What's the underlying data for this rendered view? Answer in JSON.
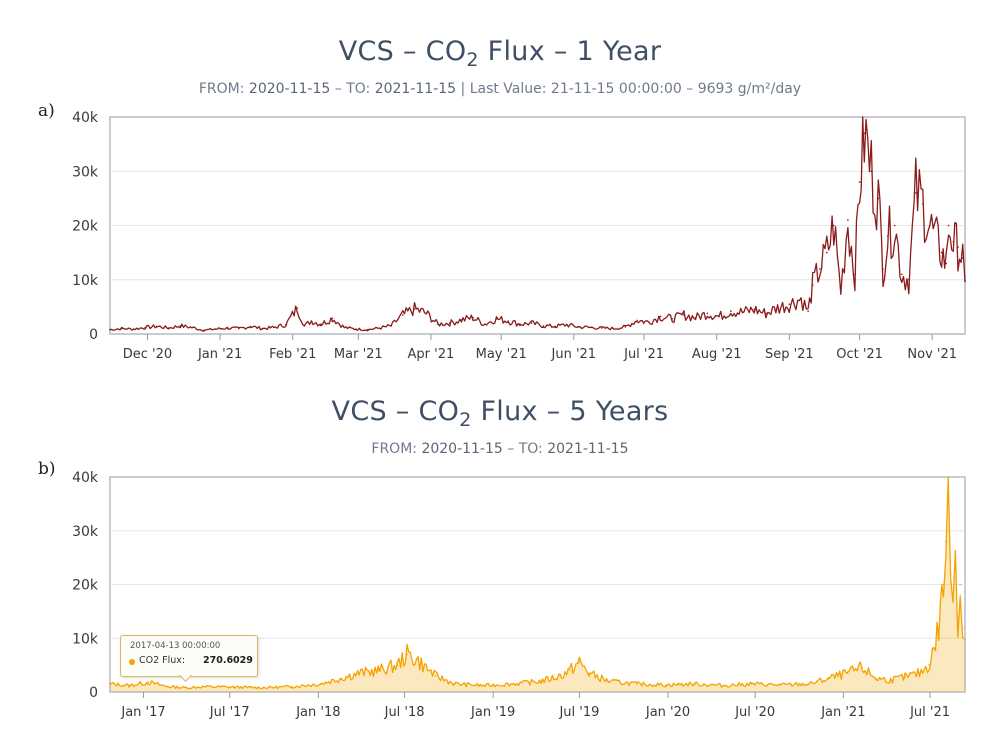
{
  "chart_data": [
    {
      "id": "a",
      "type": "line",
      "panel_label": "a)",
      "title_prefix": "VCS – CO",
      "title_sub": "2",
      "title_suffix": " Flux – 1 Year",
      "subtitle": {
        "from_label": "FROM: ",
        "from_value": "2020‑11‑15",
        "to_label": " – TO: ",
        "to_value": "2021‑11‑15",
        "last_label": " | Last Value: 21‑11‑15 00:00:00 – 9693 g/m²/day"
      },
      "series_name": "CO2 Flux",
      "color": "#8b1a1a",
      "ylim": [
        0,
        40000
      ],
      "y_ticks": [
        "0",
        "10k",
        "20k",
        "30k",
        "40k"
      ],
      "x_range_days": [
        0,
        365
      ],
      "x_ticks": [
        {
          "label": "Dec '20",
          "day": 16
        },
        {
          "label": "Jan '21",
          "day": 47
        },
        {
          "label": "Feb '21",
          "day": 78
        },
        {
          "label": "Mar '21",
          "day": 106
        },
        {
          "label": "Apr '21",
          "day": 137
        },
        {
          "label": "May '21",
          "day": 167
        },
        {
          "label": "Jun '21",
          "day": 198
        },
        {
          "label": "Jul '21",
          "day": 228
        },
        {
          "label": "Aug '21",
          "day": 259
        },
        {
          "label": "Sep '21",
          "day": 290
        },
        {
          "label": "Oct '21",
          "day": 320
        },
        {
          "label": "Nov '21",
          "day": 351
        }
      ],
      "points": [
        [
          0,
          800
        ],
        [
          5,
          1000
        ],
        [
          10,
          900
        ],
        [
          15,
          1200
        ],
        [
          20,
          1400
        ],
        [
          25,
          1100
        ],
        [
          30,
          1500
        ],
        [
          35,
          1200
        ],
        [
          40,
          700
        ],
        [
          45,
          900
        ],
        [
          50,
          1100
        ],
        [
          55,
          1000
        ],
        [
          60,
          1400
        ],
        [
          65,
          1000
        ],
        [
          70,
          1200
        ],
        [
          75,
          1700
        ],
        [
          80,
          4800
        ],
        [
          83,
          1500
        ],
        [
          86,
          2400
        ],
        [
          90,
          1800
        ],
        [
          95,
          2900
        ],
        [
          100,
          1200
        ],
        [
          105,
          900
        ],
        [
          110,
          800
        ],
        [
          115,
          1100
        ],
        [
          120,
          1500
        ],
        [
          125,
          3500
        ],
        [
          130,
          4600
        ],
        [
          135,
          3800
        ],
        [
          140,
          1800
        ],
        [
          145,
          2000
        ],
        [
          150,
          2600
        ],
        [
          155,
          3000
        ],
        [
          160,
          1800
        ],
        [
          165,
          2800
        ],
        [
          170,
          2400
        ],
        [
          175,
          1800
        ],
        [
          180,
          2000
        ],
        [
          185,
          1500
        ],
        [
          190,
          1400
        ],
        [
          195,
          1700
        ],
        [
          200,
          1300
        ],
        [
          205,
          1200
        ],
        [
          210,
          1100
        ],
        [
          215,
          1000
        ],
        [
          220,
          1300
        ],
        [
          225,
          2500
        ],
        [
          230,
          2200
        ],
        [
          235,
          3200
        ],
        [
          240,
          2800
        ],
        [
          245,
          3500
        ],
        [
          250,
          3000
        ],
        [
          255,
          3800
        ],
        [
          260,
          3200
        ],
        [
          265,
          4200
        ],
        [
          270,
          4000
        ],
        [
          275,
          4500
        ],
        [
          280,
          3800
        ],
        [
          285,
          4800
        ],
        [
          290,
          5500
        ],
        [
          295,
          6500
        ],
        [
          298,
          4200
        ],
        [
          300,
          9000
        ],
        [
          303,
          12000
        ],
        [
          306,
          15000
        ],
        [
          309,
          20000
        ],
        [
          312,
          8000
        ],
        [
          315,
          21000
        ],
        [
          318,
          11000
        ],
        [
          320,
          28000
        ],
        [
          322,
          37000
        ],
        [
          325,
          30000
        ],
        [
          328,
          25000
        ],
        [
          330,
          12000
        ],
        [
          332,
          18000
        ],
        [
          335,
          20000
        ],
        [
          338,
          11000
        ],
        [
          341,
          10000
        ],
        [
          344,
          26000
        ],
        [
          347,
          24000
        ],
        [
          350,
          20000
        ],
        [
          355,
          15000
        ],
        [
          357,
          13000
        ],
        [
          358,
          20000
        ],
        [
          360,
          17000
        ],
        [
          362,
          16000
        ],
        [
          364,
          14000
        ],
        [
          365,
          9693
        ]
      ]
    },
    {
      "id": "b",
      "type": "area",
      "panel_label": "b)",
      "title_prefix": "VCS – CO",
      "title_sub": "2",
      "title_suffix": " Flux – 5 Years",
      "subtitle": {
        "from_label": "FROM: ",
        "from_value": "2020‑11‑15",
        "to_label": " – TO: ",
        "to_value": "2021‑11‑15",
        "last_label": ""
      },
      "series_name": "CO2 Flux",
      "color": "#f5a300",
      "ylim": [
        0,
        40000
      ],
      "y_ticks": [
        "0",
        "10k",
        "20k",
        "30k",
        "40k"
      ],
      "x_range_days": [
        0,
        1785
      ],
      "x_ticks": [
        {
          "label": "Jan '17",
          "day": 70
        },
        {
          "label": "Jul '17",
          "day": 250
        },
        {
          "label": "Jan '18",
          "day": 435
        },
        {
          "label": "Jul '18",
          "day": 615
        },
        {
          "label": "Jan '19",
          "day": 800
        },
        {
          "label": "Jul '19",
          "day": 980
        },
        {
          "label": "Jan '20",
          "day": 1165
        },
        {
          "label": "Jul '20",
          "day": 1347
        },
        {
          "label": "Jan '21",
          "day": 1531
        },
        {
          "label": "Jul '21",
          "day": 1712
        }
      ],
      "points": [
        [
          0,
          1500
        ],
        [
          40,
          1200
        ],
        [
          80,
          1800
        ],
        [
          120,
          1000
        ],
        [
          160,
          800
        ],
        [
          200,
          1000
        ],
        [
          260,
          900
        ],
        [
          320,
          800
        ],
        [
          380,
          1000
        ],
        [
          440,
          1500
        ],
        [
          480,
          2500
        ],
        [
          520,
          3500
        ],
        [
          560,
          4000
        ],
        [
          600,
          5000
        ],
        [
          620,
          7000
        ],
        [
          640,
          6000
        ],
        [
          680,
          3000
        ],
        [
          720,
          1500
        ],
        [
          780,
          1200
        ],
        [
          840,
          1500
        ],
        [
          900,
          2000
        ],
        [
          940,
          3000
        ],
        [
          960,
          4000
        ],
        [
          980,
          5500
        ],
        [
          1000,
          3500
        ],
        [
          1040,
          2000
        ],
        [
          1100,
          1500
        ],
        [
          1160,
          1300
        ],
        [
          1220,
          1500
        ],
        [
          1280,
          1200
        ],
        [
          1340,
          1500
        ],
        [
          1400,
          1300
        ],
        [
          1460,
          1500
        ],
        [
          1500,
          2500
        ],
        [
          1540,
          3500
        ],
        [
          1570,
          4500
        ],
        [
          1600,
          2500
        ],
        [
          1630,
          2200
        ],
        [
          1660,
          2800
        ],
        [
          1690,
          3500
        ],
        [
          1710,
          5000
        ],
        [
          1720,
          8000
        ],
        [
          1730,
          12000
        ],
        [
          1740,
          20000
        ],
        [
          1745,
          28000
        ],
        [
          1750,
          37000
        ],
        [
          1755,
          22000
        ],
        [
          1760,
          18000
        ],
        [
          1765,
          26000
        ],
        [
          1770,
          14000
        ],
        [
          1775,
          20000
        ],
        [
          1780,
          12000
        ],
        [
          1785,
          9693
        ]
      ],
      "tooltip": {
        "date": "2017‑04‑13 00:00:00",
        "name": "CO2 Flux: ",
        "value": "270.6029"
      }
    }
  ]
}
